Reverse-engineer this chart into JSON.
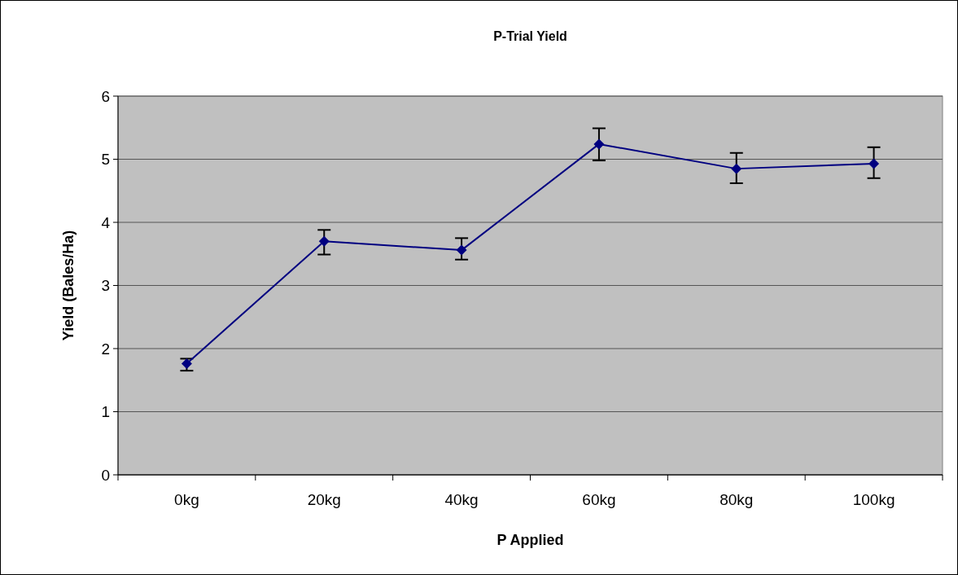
{
  "chart_data": {
    "type": "line",
    "title": "P-Trial Yield",
    "xlabel": "P Applied",
    "ylabel": "Yield (Bales/Ha)",
    "categories": [
      "0kg",
      "20kg",
      "40kg",
      "60kg",
      "80kg",
      "100kg"
    ],
    "series": [
      {
        "color": "#000080",
        "values": [
          1.76,
          3.7,
          3.56,
          5.24,
          4.85,
          4.93
        ],
        "errors": [
          [
            1.65,
            1.84
          ],
          [
            3.49,
            3.88
          ],
          [
            3.41,
            3.75
          ],
          [
            4.98,
            5.49
          ],
          [
            4.62,
            5.1
          ],
          [
            4.7,
            5.19
          ]
        ]
      }
    ],
    "ylim": [
      0,
      6
    ],
    "yticks": [
      0,
      1,
      2,
      3,
      4,
      5,
      6
    ],
    "grid": "y",
    "marker": "diamond",
    "line_style": "solid"
  }
}
